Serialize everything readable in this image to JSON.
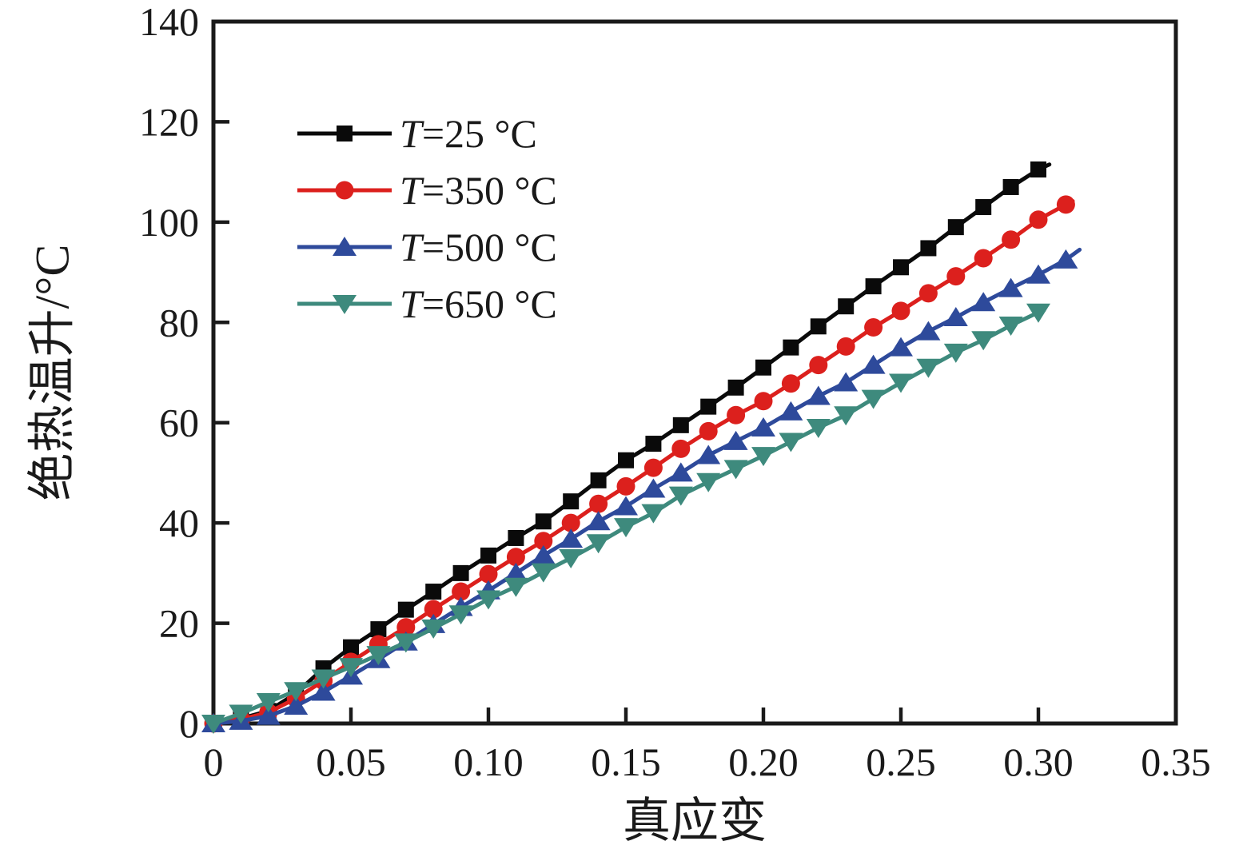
{
  "chart_data": {
    "type": "line",
    "title": "",
    "xlabel": "真应变",
    "ylabel": "绝热温升/°C",
    "xlim": [
      0,
      0.35
    ],
    "ylim": [
      0,
      140
    ],
    "x_ticks": [
      0.05,
      0.1,
      0.15,
      0.2,
      0.25,
      0.3,
      0.35
    ],
    "x_tick_labels": [
      "0",
      "0.05",
      "0.10",
      "0.15",
      "0.20",
      "0.25",
      "0.30",
      "0.35"
    ],
    "x_tick_label_values": [
      0,
      0.05,
      0.1,
      0.15,
      0.2,
      0.25,
      0.3,
      0.35
    ],
    "y_ticks": [
      20,
      40,
      60,
      80,
      100,
      120
    ],
    "y_tick_labels": [
      "0",
      "20",
      "40",
      "60",
      "80",
      "100",
      "120",
      "140"
    ],
    "y_tick_label_values": [
      0,
      20,
      40,
      60,
      80,
      100,
      120,
      140
    ],
    "grid": false,
    "frame": "box",
    "legend_position": "upper-left-inside",
    "series": [
      {
        "name": "T=25 °C",
        "color": "#0a0a0a",
        "marker": "square",
        "x": [
          0,
          0.01,
          0.02,
          0.03,
          0.04,
          0.05,
          0.06,
          0.07,
          0.08,
          0.09,
          0.1,
          0.11,
          0.12,
          0.13,
          0.14,
          0.15,
          0.16,
          0.17,
          0.18,
          0.19,
          0.2,
          0.21,
          0.22,
          0.23,
          0.24,
          0.25,
          0.26,
          0.27,
          0.28,
          0.29,
          0.3
        ],
        "y": [
          0,
          1,
          2.5,
          6,
          11,
          15.2,
          18.8,
          22.7,
          26.3,
          30,
          33.5,
          37,
          40.3,
          44.3,
          48.5,
          52.5,
          55.8,
          59.5,
          63.2,
          67,
          71,
          75,
          79.2,
          83.2,
          87.2,
          91,
          94.8,
          99,
          103,
          107,
          110.5
        ],
        "line_end": [
          0.304,
          111.5
        ]
      },
      {
        "name": "T=350 °C",
        "color": "#dc201d",
        "marker": "circle",
        "x": [
          0,
          0.01,
          0.02,
          0.03,
          0.04,
          0.05,
          0.06,
          0.07,
          0.08,
          0.09,
          0.1,
          0.11,
          0.12,
          0.13,
          0.14,
          0.15,
          0.16,
          0.17,
          0.18,
          0.19,
          0.2,
          0.21,
          0.22,
          0.23,
          0.24,
          0.25,
          0.26,
          0.27,
          0.28,
          0.29,
          0.3,
          0.31
        ],
        "y": [
          0,
          0.8,
          2.2,
          5,
          8.5,
          12.3,
          15.8,
          19.2,
          22.8,
          26.3,
          29.8,
          33.2,
          36.4,
          40,
          43.8,
          47.3,
          51,
          54.8,
          58.3,
          61.5,
          64.3,
          67.8,
          71.5,
          75.2,
          79,
          82.3,
          85.8,
          89.2,
          92.8,
          96.5,
          100.5,
          103.5
        ],
        "line_end": [
          0.3125,
          104.2
        ]
      },
      {
        "name": "T=500 °C",
        "color": "#2e4a9b",
        "marker": "triangle-up",
        "x": [
          0,
          0.01,
          0.02,
          0.03,
          0.04,
          0.05,
          0.06,
          0.07,
          0.08,
          0.09,
          0.1,
          0.11,
          0.12,
          0.13,
          0.14,
          0.15,
          0.16,
          0.17,
          0.18,
          0.19,
          0.2,
          0.21,
          0.22,
          0.23,
          0.24,
          0.25,
          0.26,
          0.27,
          0.28,
          0.29,
          0.3,
          0.31
        ],
        "y": [
          0,
          0.5,
          1.5,
          3.5,
          6.3,
          9.5,
          12.8,
          16.3,
          19.8,
          23.2,
          26.5,
          30,
          33.5,
          36.8,
          40.3,
          43.3,
          46.8,
          50,
          53.5,
          56.3,
          59,
          62.2,
          65.3,
          68,
          71.5,
          75,
          78.2,
          81,
          84,
          86.8,
          89.5,
          92.5
        ],
        "line_end": [
          0.315,
          94.5
        ]
      },
      {
        "name": "T=650 °C",
        "color": "#3e8a7d",
        "marker": "triangle-down",
        "x": [
          0,
          0.01,
          0.02,
          0.03,
          0.04,
          0.05,
          0.06,
          0.07,
          0.08,
          0.09,
          0.1,
          0.11,
          0.12,
          0.13,
          0.14,
          0.15,
          0.16,
          0.17,
          0.18,
          0.19,
          0.2,
          0.21,
          0.22,
          0.23,
          0.24,
          0.25,
          0.26,
          0.27,
          0.28,
          0.29,
          0.3
        ],
        "y": [
          0,
          2,
          4.3,
          6.5,
          9,
          11.3,
          13.7,
          16.2,
          19,
          21.8,
          24.8,
          27.3,
          30.2,
          33,
          36,
          39.2,
          42,
          45.5,
          48.2,
          50.8,
          53.4,
          56.2,
          59,
          61.5,
          64.8,
          68,
          71,
          74,
          76.5,
          79.4,
          82
        ],
        "line_end": [
          0.302,
          82.4
        ]
      }
    ]
  }
}
